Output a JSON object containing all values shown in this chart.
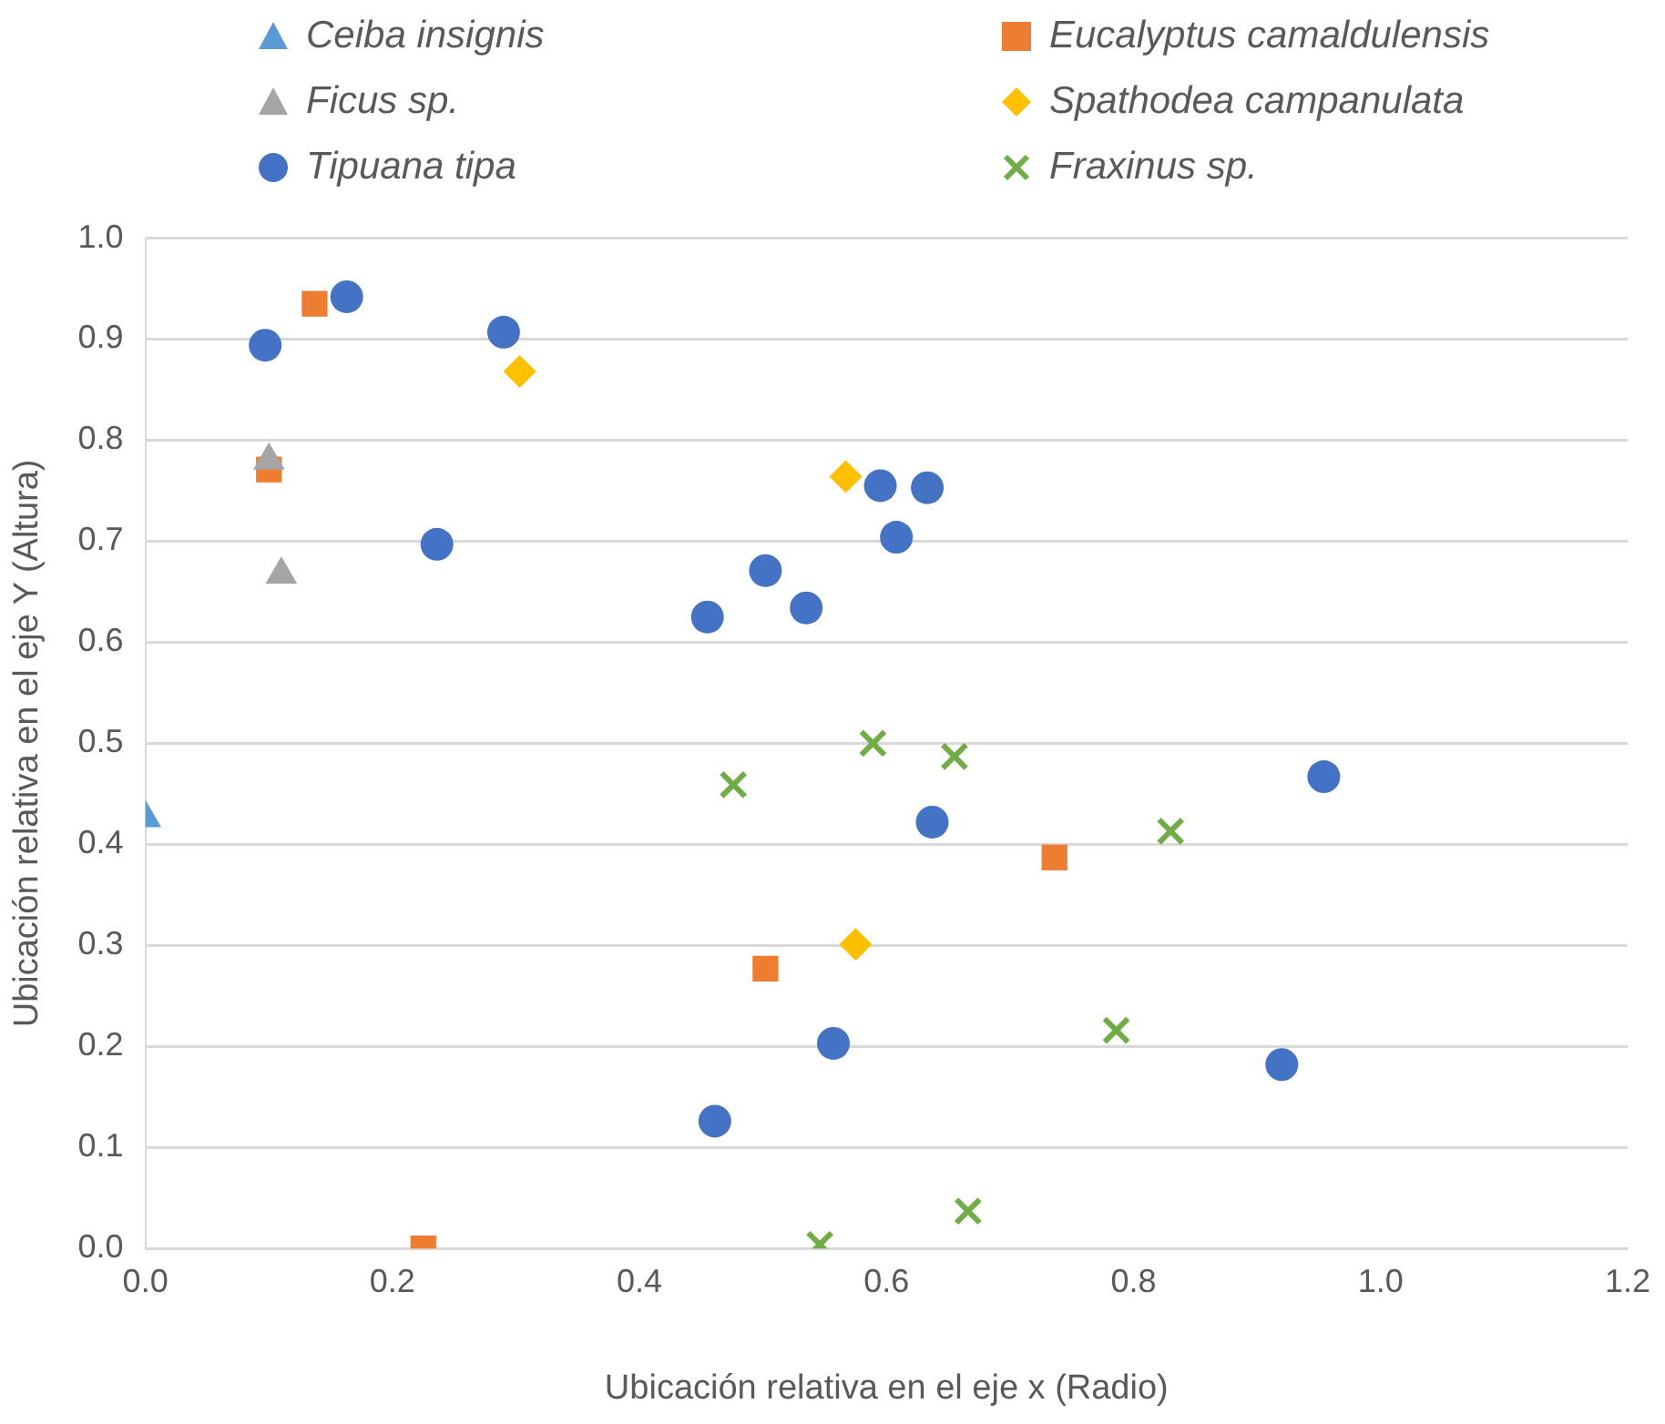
{
  "chart_data": {
    "type": "scatter",
    "xlabel": "Ubicación relativa en el eje x (Radio)",
    "ylabel": "Ubicación relativa en el eje Y (Altura)",
    "xlim": [
      0,
      1.2
    ],
    "xticks": [
      {
        "value": 0,
        "label": "0.0"
      },
      0.2,
      0.4,
      0.6,
      0.8,
      {
        "value": 1,
        "label": "1.0"
      },
      1.2
    ],
    "ylim": [
      0,
      1
    ],
    "yticks": [
      {
        "value": 0,
        "label": "0.0"
      },
      0.1,
      0.2,
      0.3,
      0.4,
      0.5,
      0.6,
      0.7,
      0.8,
      0.9,
      {
        "value": 1,
        "label": "1.0"
      }
    ],
    "grid": "y",
    "legend": "top",
    "series": [
      {
        "name": "Ceiba insignis",
        "color": "#5b9bd5",
        "marker": "triangle",
        "x": [
          0
        ],
        "values": [
          0.426
        ]
      },
      {
        "name": "Eucalyptus camaldulensis",
        "color": "#ed7d31",
        "marker": "square",
        "x": [
          0.137,
          0.1,
          0.225,
          0.502,
          0.736
        ],
        "values": [
          0.935,
          0.771,
          0,
          0.277,
          0.387
        ]
      },
      {
        "name": "Ficus sp.",
        "color": "#a5a5a5",
        "marker": "triangle",
        "x": [
          0.1,
          0.11
        ],
        "values": [
          0.78,
          0.667
        ]
      },
      {
        "name": "Spathodea campanulata",
        "color": "#ffc000",
        "marker": "diamond",
        "x": [
          0.303,
          0.567,
          0.575
        ],
        "values": [
          0.868,
          0.764,
          0.301
        ]
      },
      {
        "name": "Tipuana tipa",
        "color": "#4472c4",
        "marker": "circle",
        "x": [
          0.097,
          0.163,
          0.29,
          0.236,
          0.455,
          0.502,
          0.535,
          0.595,
          0.633,
          0.608,
          0.637,
          0.557,
          0.461,
          0.92,
          0.954
        ],
        "values": [
          0.894,
          0.942,
          0.907,
          0.697,
          0.625,
          0.671,
          0.634,
          0.755,
          0.753,
          0.704,
          0.422,
          0.203,
          0.126,
          0.182,
          0.467
        ]
      },
      {
        "name": "Fraxinus sp.",
        "color": "#70ad47",
        "marker": "cross",
        "x": [
          0.476,
          0.589,
          0.655,
          0.83,
          0.786,
          0.666,
          0.546
        ],
        "values": [
          0.459,
          0.5,
          0.487,
          0.413,
          0.216,
          0.037,
          0.004
        ]
      }
    ]
  }
}
